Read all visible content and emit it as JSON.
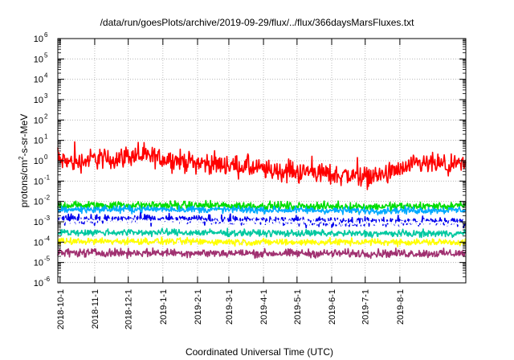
{
  "chart_data": {
    "type": "line",
    "title": "/data/run/goesPlots/archive/2019-09-29/flux/../flux/366daysMarsFluxes.txt",
    "xlabel": "Coordinated Universal Time (UTC)",
    "ylabel": "protons/cm²-s-sr-MeV",
    "ylabel_parts": [
      "protons/cm",
      "2",
      "-s-sr-MeV"
    ],
    "yscale": "log",
    "ylim": [
      1e-06,
      1000000.0
    ],
    "xlim": [
      "2018-09-29",
      "2019-09-29"
    ],
    "grid": true,
    "x_ticks": [
      "2018-10-1",
      "2018-11-1",
      "2018-12-1",
      "2019-1-1",
      "2019-2-1",
      "2019-3-1",
      "2019-4-1",
      "2019-5-1",
      "2019-6-1",
      "2019-7-1",
      "2019-8-1"
    ],
    "y_ticks": [
      {
        "base": "10",
        "exp": "-6"
      },
      {
        "base": "10",
        "exp": "-5"
      },
      {
        "base": "10",
        "exp": "-4"
      },
      {
        "base": "10",
        "exp": "-3"
      },
      {
        "base": "10",
        "exp": "-2"
      },
      {
        "base": "10",
        "exp": "-1"
      },
      {
        "base": "10",
        "exp": "0"
      },
      {
        "base": "10",
        "exp": "1"
      },
      {
        "base": "10",
        "exp": "2"
      },
      {
        "base": "10",
        "exp": "3"
      },
      {
        "base": "10",
        "exp": "4"
      },
      {
        "base": "10",
        "exp": "5"
      },
      {
        "base": "10",
        "exp": "6"
      }
    ],
    "series": [
      {
        "color": "#ff0000",
        "x": [
          "2018-10-1",
          "2018-10-15",
          "2018-11-1",
          "2018-11-15",
          "2018-12-1",
          "2018-12-15",
          "2019-1-1",
          "2019-1-15",
          "2019-2-1",
          "2019-2-15",
          "2019-3-1",
          "2019-3-15",
          "2019-4-1",
          "2019-4-15",
          "2019-5-1",
          "2019-5-15",
          "2019-6-1",
          "2019-6-15",
          "2019-7-1",
          "2019-7-15",
          "2019-8-1",
          "2019-8-15",
          "2019-9-1",
          "2019-9-15",
          "2019-9-29"
        ],
        "values": [
          1.0,
          0.8,
          1.3,
          1.1,
          1.8,
          1.6,
          1.3,
          1.0,
          0.8,
          0.7,
          0.6,
          0.5,
          0.35,
          0.3,
          0.25,
          0.3,
          0.2,
          0.2,
          0.15,
          0.2,
          0.3,
          0.6,
          0.7,
          0.5,
          0.6
        ],
        "spread": 0.75
      },
      {
        "color": "#00dd00",
        "x": [
          "2018-10-1",
          "2019-1-1",
          "2019-4-1",
          "2019-7-1",
          "2019-9-29"
        ],
        "values": [
          0.0065,
          0.0065,
          0.006,
          0.0055,
          0.006
        ],
        "spread": 0.3
      },
      {
        "color": "#00aaff",
        "x": [
          "2018-10-1",
          "2019-1-1",
          "2019-4-1",
          "2019-7-1",
          "2019-9-29"
        ],
        "values": [
          0.004,
          0.0042,
          0.0038,
          0.0035,
          0.0038
        ],
        "spread": 0.25
      },
      {
        "color": "#0000ee",
        "x": [
          "2018-10-1",
          "2019-1-1",
          "2019-4-1",
          "2019-7-1",
          "2019-9-29"
        ],
        "values": [
          0.0013,
          0.0013,
          0.0011,
          0.001,
          0.001
        ],
        "spread": 0.35
      },
      {
        "color": "#ffffff",
        "x": [
          "2018-10-1",
          "2019-1-1",
          "2019-4-1",
          "2019-7-1",
          "2019-9-29"
        ],
        "values": [
          0.0011,
          0.0011,
          0.001,
          0.0009,
          0.0009
        ],
        "spread": 0.2
      },
      {
        "color": "#00c8a0",
        "x": [
          "2018-10-1",
          "2019-1-1",
          "2019-4-1",
          "2019-7-1",
          "2019-9-29"
        ],
        "values": [
          0.0003,
          0.0003,
          0.00028,
          0.00026,
          0.00027
        ],
        "spread": 0.25
      },
      {
        "color": "#ffff00",
        "x": [
          "2018-10-1",
          "2019-1-1",
          "2019-4-1",
          "2019-7-1",
          "2019-9-29"
        ],
        "values": [
          0.00011,
          0.00011,
          0.0001,
          0.0001,
          0.0001
        ],
        "spread": 0.25
      },
      {
        "color": "#a03070",
        "x": [
          "2018-10-1",
          "2019-1-1",
          "2019-4-1",
          "2019-7-1",
          "2019-9-29"
        ],
        "values": [
          3e-05,
          3e-05,
          2.8e-05,
          2.8e-05,
          2.8e-05
        ],
        "spread": 0.3
      }
    ]
  }
}
